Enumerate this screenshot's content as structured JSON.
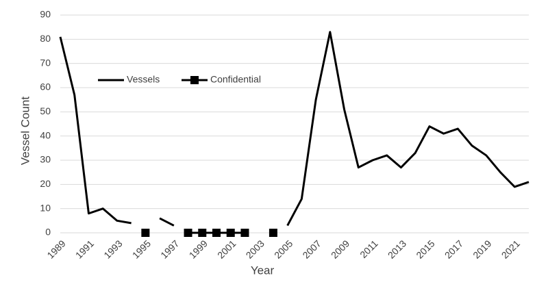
{
  "chart_data": {
    "type": "line",
    "x_label": "Year",
    "y_label": "Vessel Count",
    "x": [
      1989,
      1990,
      1991,
      1992,
      1993,
      1994,
      1995,
      1996,
      1997,
      1998,
      1999,
      2000,
      2001,
      2002,
      2003,
      2004,
      2005,
      2006,
      2007,
      2008,
      2009,
      2010,
      2011,
      2012,
      2013,
      2014,
      2015,
      2016,
      2017,
      2018,
      2019,
      2020,
      2021,
      2022
    ],
    "series": [
      {
        "name": "Vessels",
        "color": "#000000",
        "marker": "none",
        "values": [
          81,
          57,
          8,
          10,
          5,
          4,
          null,
          6,
          3,
          null,
          null,
          null,
          null,
          null,
          null,
          null,
          3,
          14,
          55,
          83,
          51,
          27,
          30,
          32,
          27,
          33,
          44,
          41,
          43,
          36,
          32,
          25,
          19,
          21
        ]
      },
      {
        "name": "Confidential",
        "color": "#000000",
        "marker": "square",
        "values": [
          null,
          null,
          null,
          null,
          null,
          null,
          0,
          null,
          null,
          0,
          0,
          0,
          0,
          0,
          null,
          0,
          null,
          null,
          null,
          null,
          null,
          null,
          null,
          null,
          null,
          null,
          null,
          null,
          null,
          null,
          null,
          null,
          null,
          null
        ]
      }
    ],
    "xlim": [
      1989,
      2022
    ],
    "xticks": [
      1989,
      1991,
      1993,
      1995,
      1997,
      1999,
      2001,
      2003,
      2005,
      2007,
      2009,
      2011,
      2013,
      2015,
      2017,
      2019,
      2021
    ],
    "ylim": [
      0,
      90
    ],
    "yticks": [
      0,
      10,
      20,
      30,
      40,
      50,
      60,
      70,
      80,
      90
    ],
    "grid": true,
    "legend": "upper-left"
  }
}
